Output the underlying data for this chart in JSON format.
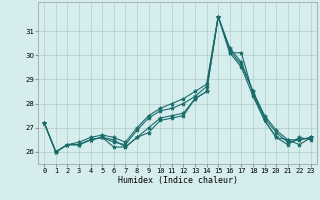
{
  "title": "",
  "xlabel": "Humidex (Indice chaleur)",
  "ylabel": "",
  "background_color": "#d5edec",
  "grid_color": "#b0cccc",
  "line_color": "#1a6b6b",
  "x": [
    0,
    1,
    2,
    3,
    4,
    5,
    6,
    7,
    8,
    9,
    10,
    11,
    12,
    13,
    14,
    15,
    16,
    17,
    18,
    19,
    20,
    21,
    22,
    23
  ],
  "series": [
    [
      27.2,
      26.0,
      26.3,
      26.3,
      26.5,
      26.6,
      26.5,
      26.2,
      26.6,
      26.8,
      27.3,
      27.4,
      27.5,
      28.2,
      28.5,
      31.6,
      30.1,
      29.5,
      28.3,
      27.3,
      26.6,
      26.3,
      26.6,
      26.5
    ],
    [
      27.2,
      26.0,
      26.3,
      26.3,
      26.5,
      26.6,
      26.2,
      26.2,
      26.6,
      27.0,
      27.4,
      27.5,
      27.6,
      28.2,
      28.5,
      31.6,
      30.1,
      30.1,
      28.4,
      27.3,
      26.6,
      26.5,
      26.3,
      26.6
    ],
    [
      27.2,
      26.0,
      26.3,
      26.3,
      26.5,
      26.6,
      26.4,
      26.3,
      26.9,
      27.4,
      27.7,
      27.8,
      28.0,
      28.3,
      28.7,
      31.6,
      30.2,
      29.6,
      28.5,
      27.4,
      26.8,
      26.4,
      26.5,
      26.6
    ],
    [
      27.2,
      26.0,
      26.3,
      26.4,
      26.6,
      26.7,
      26.6,
      26.4,
      27.0,
      27.5,
      27.8,
      28.0,
      28.2,
      28.5,
      28.8,
      31.6,
      30.3,
      29.7,
      28.5,
      27.5,
      26.9,
      26.5,
      26.5,
      26.6
    ]
  ],
  "ylim": [
    25.5,
    32.2
  ],
  "yticks": [
    26,
    27,
    28,
    29,
    30,
    31
  ],
  "xlim": [
    -0.5,
    23.5
  ],
  "xticks": [
    0,
    1,
    2,
    3,
    4,
    5,
    6,
    7,
    8,
    9,
    10,
    11,
    12,
    13,
    14,
    15,
    16,
    17,
    18,
    19,
    20,
    21,
    22,
    23
  ],
  "marker": "*",
  "markersize": 3,
  "linewidth": 0.8,
  "xlabel_fontsize": 6,
  "tick_fontsize": 5
}
